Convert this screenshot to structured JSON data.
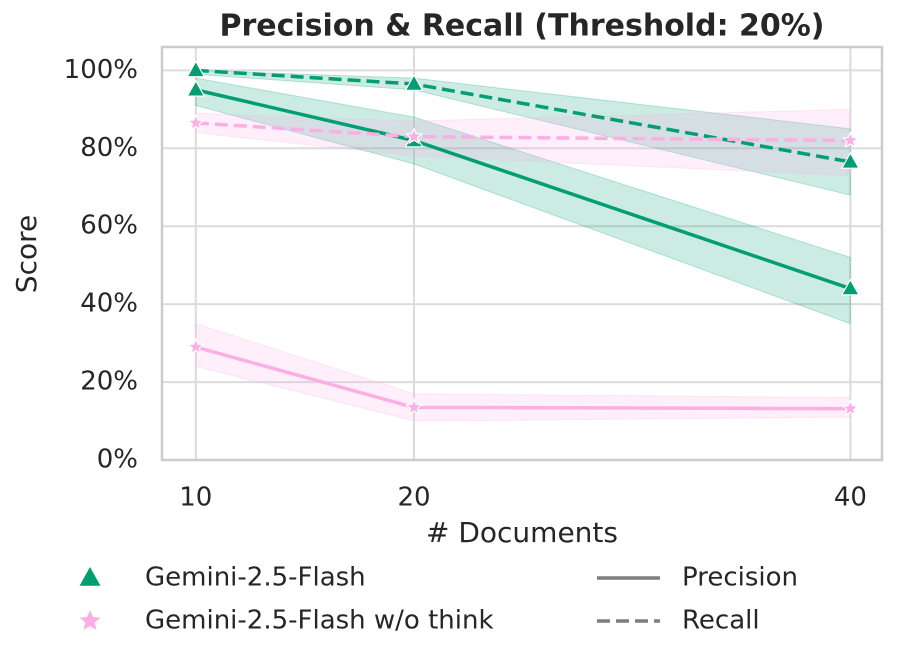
{
  "chart_data": {
    "type": "line",
    "title": "Precision & Recall (Threshold: 20%)",
    "xlabel": "# Documents",
    "ylabel": "Score",
    "x": [
      10,
      20,
      40
    ],
    "xlim": [
      8.45,
      41.45
    ],
    "xticks": [
      10,
      20,
      40
    ],
    "ylim": [
      0,
      106
    ],
    "yticks": [
      {
        "value": 0,
        "label": "0%"
      },
      {
        "value": 20,
        "label": "20%"
      },
      {
        "value": 40,
        "label": "40%"
      },
      {
        "value": 60,
        "label": "60%"
      },
      {
        "value": 80,
        "label": "80%"
      },
      {
        "value": 100,
        "label": "100%"
      }
    ],
    "grid": true,
    "series": [
      {
        "name": "Gemini-2.5-Flash",
        "metric": "Precision",
        "color": "#029e73",
        "marker": "triangle",
        "dash": false,
        "values": [
          95,
          82,
          44
        ],
        "lower": [
          91,
          76,
          35
        ],
        "upper": [
          98,
          88,
          52
        ]
      },
      {
        "name": "Gemini-2.5-Flash",
        "metric": "Recall",
        "color": "#029e73",
        "marker": "triangle",
        "dash": true,
        "values": [
          100,
          96.5,
          76.5
        ],
        "lower": [
          99,
          95,
          68
        ],
        "upper": [
          100,
          98,
          85
        ]
      },
      {
        "name": "Gemini-2.5-Flash w/o think",
        "metric": "Precision",
        "color": "#fbafe4",
        "marker": "star",
        "dash": false,
        "values": [
          29,
          13.5,
          13.2
        ],
        "lower": [
          24,
          10,
          11
        ],
        "upper": [
          35,
          17,
          16
        ]
      },
      {
        "name": "Gemini-2.5-Flash w/o think",
        "metric": "Recall",
        "color": "#fbafe4",
        "marker": "star",
        "dash": true,
        "values": [
          86.5,
          83,
          82
        ],
        "lower": [
          84,
          78,
          73
        ],
        "upper": [
          89,
          87,
          90
        ]
      }
    ],
    "metric_legend_color": "#7f7f7f"
  }
}
